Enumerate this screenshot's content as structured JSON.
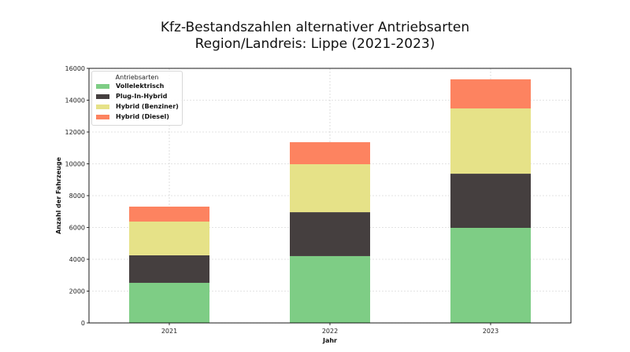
{
  "chart_data": {
    "type": "bar",
    "stacked": true,
    "title": "Kfz-Bestandszahlen alternativer Antriebsarten",
    "subtitle": "Region/Landreis: Lippe (2021-2023)",
    "xlabel": "Jahr",
    "ylabel": "Anzahl der Fahrzeuge",
    "categories": [
      "2021",
      "2022",
      "2023"
    ],
    "ylim": [
      0,
      16000
    ],
    "yticks": [
      0,
      2000,
      4000,
      6000,
      8000,
      10000,
      12000,
      14000,
      16000
    ],
    "grid": true,
    "legend": {
      "title": "Antriebsarten",
      "placement": "top-left"
    },
    "series": [
      {
        "name": "Vollelektrisch",
        "color": "#7ecd85",
        "values": [
          2520,
          4200,
          5975
        ]
      },
      {
        "name": "Plug-In-Hybrid",
        "color": "#453f3f",
        "values": [
          1730,
          2760,
          3405
        ]
      },
      {
        "name": "Hybrid (Benziner)",
        "color": "#e6e288",
        "values": [
          2120,
          3015,
          4100
        ]
      },
      {
        "name": "Hybrid (Diesel)",
        "color": "#fd8360",
        "values": [
          940,
          1385,
          1830
        ]
      }
    ]
  }
}
